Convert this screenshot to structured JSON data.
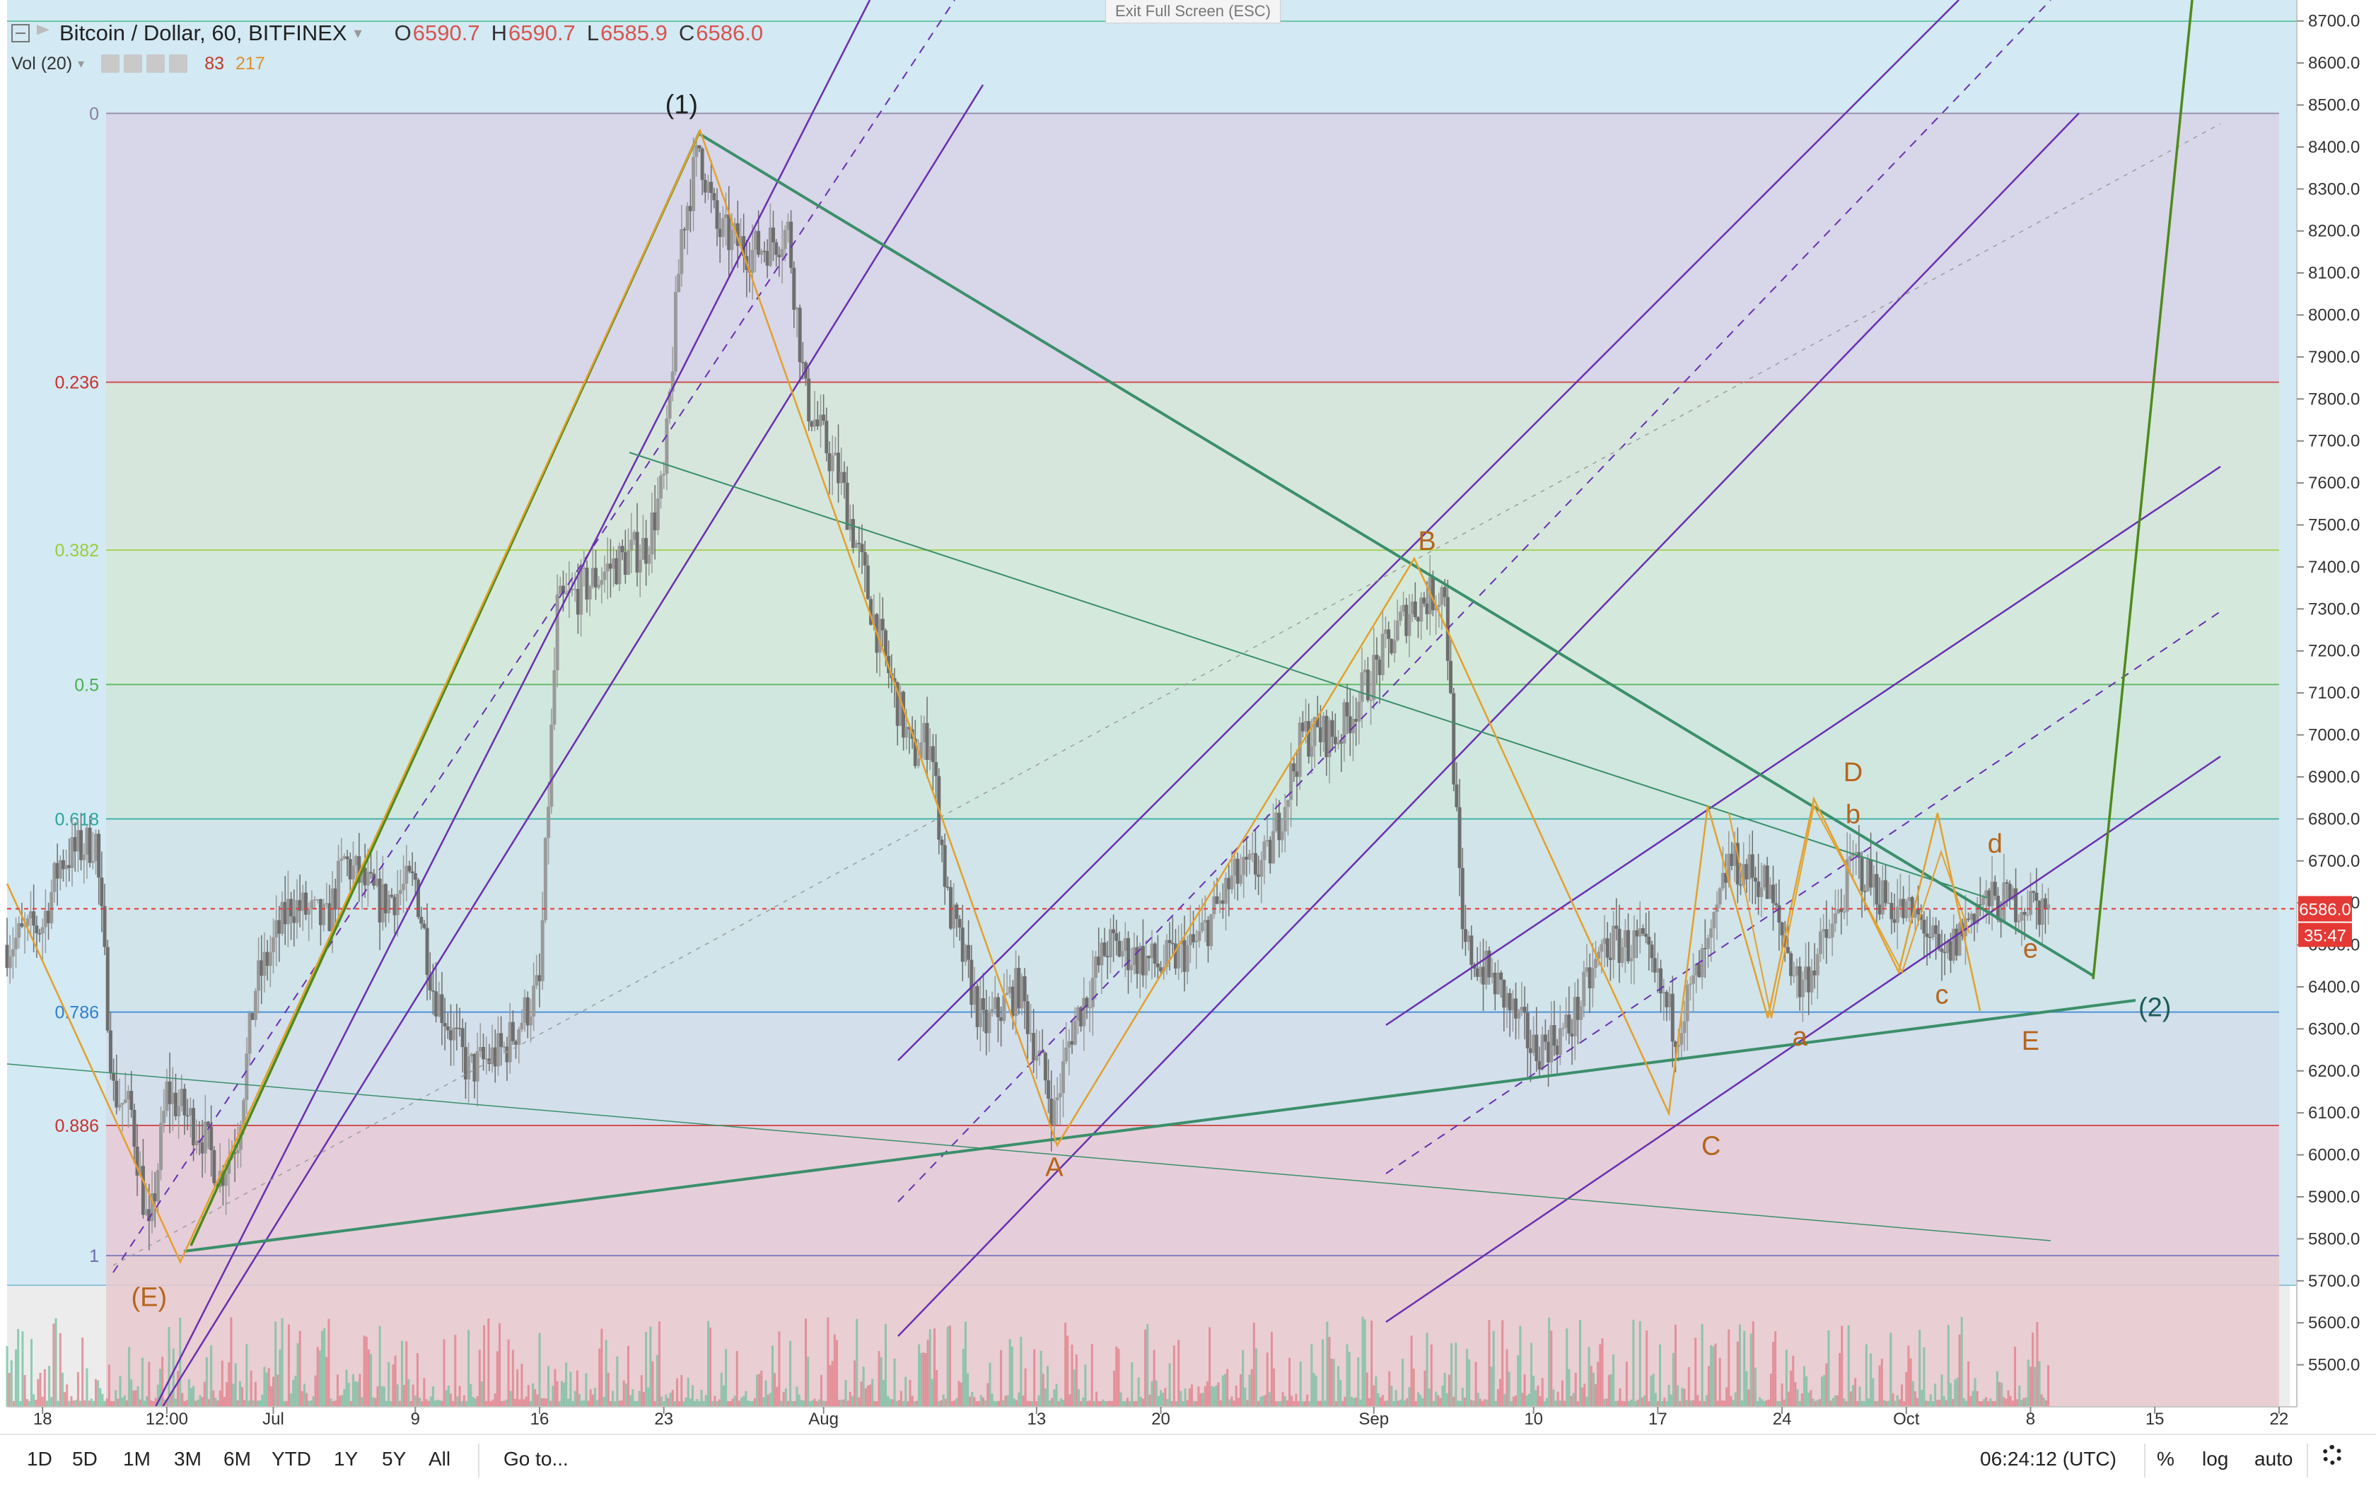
{
  "header": {
    "symbol": "Bitcoin / Dollar, 60, BITFINEX",
    "open_label": "O",
    "open": "6590.7",
    "high_label": "H",
    "high": "6590.7",
    "low_label": "L",
    "low": "6585.9",
    "close_label": "C",
    "close": "6586.0",
    "volume_label": "Vol (20)",
    "volume_value_1": "83",
    "volume_value_2": "217"
  },
  "exit_fullscreen": "Exit Full Screen (ESC)",
  "toolbar": {
    "ranges": [
      "1D",
      "5D",
      "1M",
      "3M",
      "6M",
      "YTD",
      "1Y",
      "5Y",
      "All"
    ],
    "goto": "Go to...",
    "clock": "06:24:12 (UTC)",
    "percent": "%",
    "log": "log",
    "auto": "auto"
  },
  "colors": {
    "up": "#26a69a",
    "down": "#ef5350",
    "wave": "#e3a02c",
    "pitchfork": "#6a2fb0",
    "trend": "#3b8f6a",
    "impulse": "#4e8a1a",
    "price_line": "#e53935"
  },
  "chart_data": {
    "type": "candlestick",
    "price_axis": {
      "min": 5400,
      "max": 8750,
      "ticks": [
        5500,
        5600,
        5700,
        5800,
        5900,
        6000,
        6100,
        6200,
        6300,
        6400,
        6500,
        6600,
        6700,
        6800,
        6900,
        7000,
        7100,
        7200,
        7300,
        7400,
        7500,
        7600,
        7700,
        7800,
        7900,
        8000,
        8100,
        8200,
        8300,
        8400,
        8500,
        8600,
        8700
      ],
      "tick_labels": [
        "5500.0",
        "5600.0",
        "5700.0",
        "5800.0",
        "5900.0",
        "6000.0",
        "6100.0",
        "6200.0",
        "6300.0",
        "6400.0",
        "6500.0",
        "6600.0",
        "6700.0",
        "6800.0",
        "6900.0",
        "7000.0",
        "7100.0",
        "7200.0",
        "7300.0",
        "7400.0",
        "7500.0",
        "7600.0",
        "7700.0",
        "7800.0",
        "7900.0",
        "8000.0",
        "8100.0",
        "8200.0",
        "8300.0",
        "8400.0",
        "8500.0",
        "8600.0",
        "8700.0"
      ],
      "last_price_label": "6586.0",
      "countdown_label": "35:47"
    },
    "time_axis": {
      "start": "2018-06-16",
      "end": "2018-10-23",
      "ticks": [
        {
          "date": "2018-06-18",
          "label": "18"
        },
        {
          "date": "2018-06-25",
          "label": "12:00"
        },
        {
          "date": "2018-07-01",
          "label": "Jul"
        },
        {
          "date": "2018-07-09",
          "label": "9"
        },
        {
          "date": "2018-07-16",
          "label": "16"
        },
        {
          "date": "2018-07-23",
          "label": "23"
        },
        {
          "date": "2018-08-01",
          "label": "Aug"
        },
        {
          "date": "2018-08-13",
          "label": "13"
        },
        {
          "date": "2018-08-20",
          "label": "20"
        },
        {
          "date": "2018-09-01",
          "label": "Sep"
        },
        {
          "date": "2018-09-10",
          "label": "10"
        },
        {
          "date": "2018-09-17",
          "label": "17"
        },
        {
          "date": "2018-09-24",
          "label": "24"
        },
        {
          "date": "2018-10-01",
          "label": "Oct"
        },
        {
          "date": "2018-10-08",
          "label": "8"
        },
        {
          "date": "2018-10-15",
          "label": "15"
        },
        {
          "date": "2018-10-22",
          "label": "22"
        }
      ]
    },
    "price_path": [
      [
        "2018-06-16",
        6500
      ],
      [
        "2018-06-18",
        6550
      ],
      [
        "2018-06-19",
        6700
      ],
      [
        "2018-06-21",
        6750
      ],
      [
        "2018-06-22",
        6150
      ],
      [
        "2018-06-23",
        6100
      ],
      [
        "2018-06-24",
        5800
      ],
      [
        "2018-06-25",
        6150
      ],
      [
        "2018-06-27",
        6050
      ],
      [
        "2018-06-28",
        5950
      ],
      [
        "2018-06-29",
        6050
      ],
      [
        "2018-06-30",
        6400
      ],
      [
        "2018-07-02",
        6600
      ],
      [
        "2018-07-04",
        6550
      ],
      [
        "2018-07-05",
        6700
      ],
      [
        "2018-07-07",
        6600
      ],
      [
        "2018-07-09",
        6650
      ],
      [
        "2018-07-10",
        6400
      ],
      [
        "2018-07-12",
        6200
      ],
      [
        "2018-07-14",
        6250
      ],
      [
        "2018-07-16",
        6400
      ],
      [
        "2018-07-17",
        7300
      ],
      [
        "2018-07-20",
        7400
      ],
      [
        "2018-07-22",
        7450
      ],
      [
        "2018-07-23",
        7600
      ],
      [
        "2018-07-24",
        8200
      ],
      [
        "2018-07-25",
        8400
      ],
      [
        "2018-07-26",
        8200
      ],
      [
        "2018-07-28",
        8150
      ],
      [
        "2018-07-30",
        8200
      ],
      [
        "2018-07-31",
        7800
      ],
      [
        "2018-08-02",
        7600
      ],
      [
        "2018-08-04",
        7250
      ],
      [
        "2018-08-06",
        6950
      ],
      [
        "2018-08-07",
        7000
      ],
      [
        "2018-08-08",
        6600
      ],
      [
        "2018-08-10",
        6300
      ],
      [
        "2018-08-12",
        6400
      ],
      [
        "2018-08-14",
        6100
      ],
      [
        "2018-08-15",
        6300
      ],
      [
        "2018-08-17",
        6500
      ],
      [
        "2018-08-20",
        6450
      ],
      [
        "2018-08-22",
        6500
      ],
      [
        "2018-08-24",
        6650
      ],
      [
        "2018-08-26",
        6700
      ],
      [
        "2018-08-28",
        7000
      ],
      [
        "2018-08-30",
        7000
      ],
      [
        "2018-09-01",
        7150
      ],
      [
        "2018-09-03",
        7300
      ],
      [
        "2018-09-05",
        7350
      ],
      [
        "2018-09-06",
        6500
      ],
      [
        "2018-09-08",
        6400
      ],
      [
        "2018-09-10",
        6250
      ],
      [
        "2018-09-12",
        6300
      ],
      [
        "2018-09-14",
        6500
      ],
      [
        "2018-09-16",
        6500
      ],
      [
        "2018-09-18",
        6300
      ],
      [
        "2018-09-19",
        6400
      ],
      [
        "2018-09-20",
        6500
      ],
      [
        "2018-09-21",
        6700
      ],
      [
        "2018-09-23",
        6650
      ],
      [
        "2018-09-25",
        6400
      ],
      [
        "2018-09-27",
        6550
      ],
      [
        "2018-09-28",
        6700
      ],
      [
        "2018-09-30",
        6600
      ],
      [
        "2018-10-02",
        6550
      ],
      [
        "2018-10-03",
        6450
      ],
      [
        "2018-10-05",
        6600
      ],
      [
        "2018-10-06",
        6600
      ],
      [
        "2018-10-08",
        6600
      ],
      [
        "2018-10-09",
        6586
      ]
    ],
    "fibonacci": {
      "from_date": "2018-06-16",
      "to_date": "2018-10-22",
      "levels": [
        {
          "label": "0",
          "price": 8480,
          "color": "#8a7fa0"
        },
        {
          "label": "0.236",
          "price": 7840,
          "color": "#c9302c"
        },
        {
          "label": "0.382",
          "price": 7440,
          "color": "#9ccc3a"
        },
        {
          "label": "0.5",
          "price": 7120,
          "color": "#4caf50"
        },
        {
          "label": "0.618",
          "price": 6800,
          "color": "#26a69a"
        },
        {
          "label": "0.786",
          "price": 6340,
          "color": "#2f7fd0"
        },
        {
          "label": "0.886",
          "price": 6070,
          "color": "#c9302c"
        },
        {
          "label": "1",
          "price": 5760,
          "color": "#6b6bb5"
        }
      ]
    },
    "wave_labels": [
      {
        "text": "(1)",
        "date": "2018-07-24",
        "price": 8480,
        "color": "#222222"
      },
      {
        "text": "(E)",
        "date": "2018-06-24",
        "price": 5640,
        "color": "#b5651d"
      },
      {
        "text": "A",
        "date": "2018-08-14",
        "price": 5950,
        "color": "#b5651d"
      },
      {
        "text": "B",
        "date": "2018-09-04",
        "price": 7440,
        "color": "#b5651d"
      },
      {
        "text": "C",
        "date": "2018-09-20",
        "price": 6000,
        "color": "#b5651d"
      },
      {
        "text": "D",
        "date": "2018-09-28",
        "price": 6890,
        "color": "#b5651d"
      },
      {
        "text": "E",
        "date": "2018-10-08",
        "price": 6250,
        "color": "#b5651d"
      },
      {
        "text": "a",
        "date": "2018-09-25",
        "price": 6260,
        "color": "#b5651d"
      },
      {
        "text": "b",
        "date": "2018-09-28",
        "price": 6790,
        "color": "#b5651d"
      },
      {
        "text": "c",
        "date": "2018-10-03",
        "price": 6360,
        "color": "#b5651d"
      },
      {
        "text": "d",
        "date": "2018-10-06",
        "price": 6720,
        "color": "#b5651d"
      },
      {
        "text": "e",
        "date": "2018-10-08",
        "price": 6470,
        "color": "#b5651d"
      },
      {
        "text": "(2)",
        "date": "2018-10-15",
        "price": 6330,
        "color": "#1f5b5b"
      }
    ]
  }
}
